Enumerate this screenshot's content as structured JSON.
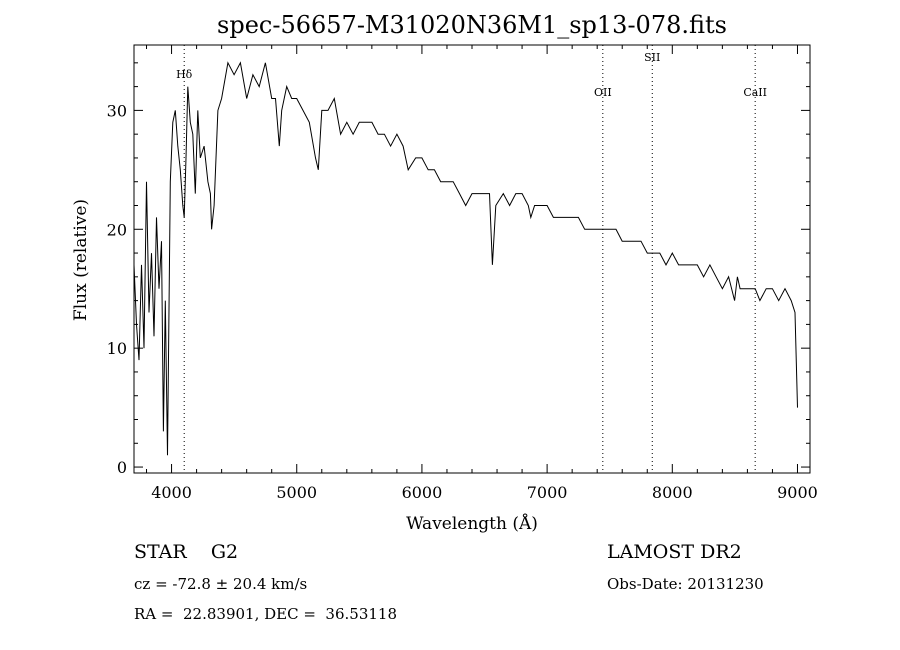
{
  "chart_data": {
    "type": "line",
    "title": "spec-56657-M31020N36M1_sp13-078.fits",
    "xlabel": "Wavelength (Å)",
    "ylabel": "Flux (relative)",
    "xlim": [
      3700,
      9100
    ],
    "ylim": [
      -0.5,
      35.5
    ],
    "xticks": [
      4000,
      5000,
      6000,
      7000,
      8000,
      9000
    ],
    "yticks": [
      0,
      10,
      20,
      30
    ],
    "grid": false,
    "legend": "none",
    "series": [
      {
        "x": [
          3700,
          3720,
          3740,
          3760,
          3780,
          3800,
          3820,
          3840,
          3860,
          3880,
          3900,
          3920,
          3935,
          3950,
          3968,
          3990,
          4010,
          4030,
          4050,
          4070,
          4090,
          4101,
          4115,
          4130,
          4150,
          4170,
          4190,
          4210,
          4230,
          4260,
          4290,
          4310,
          4320,
          4340,
          4370,
          4400,
          4450,
          4500,
          4550,
          4600,
          4650,
          4700,
          4750,
          4800,
          4830,
          4861,
          4880,
          4920,
          4960,
          5000,
          5050,
          5100,
          5150,
          5172,
          5200,
          5250,
          5300,
          5350,
          5400,
          5450,
          5500,
          5550,
          5600,
          5650,
          5700,
          5750,
          5800,
          5850,
          5890,
          5950,
          6000,
          6050,
          6100,
          6150,
          6200,
          6250,
          6300,
          6350,
          6400,
          6450,
          6500,
          6540,
          6563,
          6590,
          6650,
          6700,
          6750,
          6800,
          6850,
          6870,
          6900,
          6950,
          7000,
          7050,
          7100,
          7150,
          7200,
          7250,
          7300,
          7350,
          7400,
          7450,
          7500,
          7550,
          7600,
          7650,
          7700,
          7750,
          7800,
          7850,
          7900,
          7950,
          8000,
          8050,
          8100,
          8150,
          8200,
          8250,
          8300,
          8350,
          8400,
          8450,
          8498,
          8520,
          8542,
          8580,
          8620,
          8662,
          8700,
          8750,
          8800,
          8850,
          8900,
          8950,
          8980,
          9000
        ],
        "y": [
          17,
          12,
          9,
          17,
          10,
          24,
          13,
          18,
          11,
          21,
          15,
          19,
          3,
          14,
          1,
          24,
          29,
          30,
          27,
          25,
          22,
          21,
          26,
          32,
          29,
          28,
          23,
          30,
          26,
          27,
          24,
          23,
          20,
          22,
          30,
          31,
          34,
          33,
          34,
          31,
          33,
          32,
          34,
          31,
          31,
          27,
          30,
          32,
          31,
          31,
          30,
          29,
          26,
          25,
          30,
          30,
          31,
          28,
          29,
          28,
          29,
          29,
          29,
          28,
          28,
          27,
          28,
          27,
          25,
          26,
          26,
          25,
          25,
          24,
          24,
          24,
          23,
          22,
          23,
          23,
          23,
          23,
          17,
          22,
          23,
          22,
          23,
          23,
          22,
          21,
          22,
          22,
          22,
          21,
          21,
          21,
          21,
          21,
          20,
          20,
          20,
          20,
          20,
          20,
          19,
          19,
          19,
          19,
          18,
          18,
          18,
          17,
          18,
          17,
          17,
          17,
          17,
          16,
          17,
          16,
          15,
          16,
          14,
          16,
          15,
          15,
          15,
          15,
          14,
          15,
          15,
          14,
          15,
          14,
          13,
          5
        ]
      }
    ],
    "lines": [
      {
        "label": "Hδ",
        "x": 4101
      },
      {
        "label": "OII",
        "x": 7445
      },
      {
        "label": "SII",
        "x": 7840
      },
      {
        "label": "CaII",
        "x": 8662
      }
    ]
  },
  "info": {
    "class_text": "STAR    G2",
    "survey": "LAMOST DR2",
    "redshift": "cz = -72.8 ± 20.4 km/s",
    "obs_date": "Obs-Date: 20131230",
    "coords": "RA =  22.83901, DEC =  36.53118"
  }
}
